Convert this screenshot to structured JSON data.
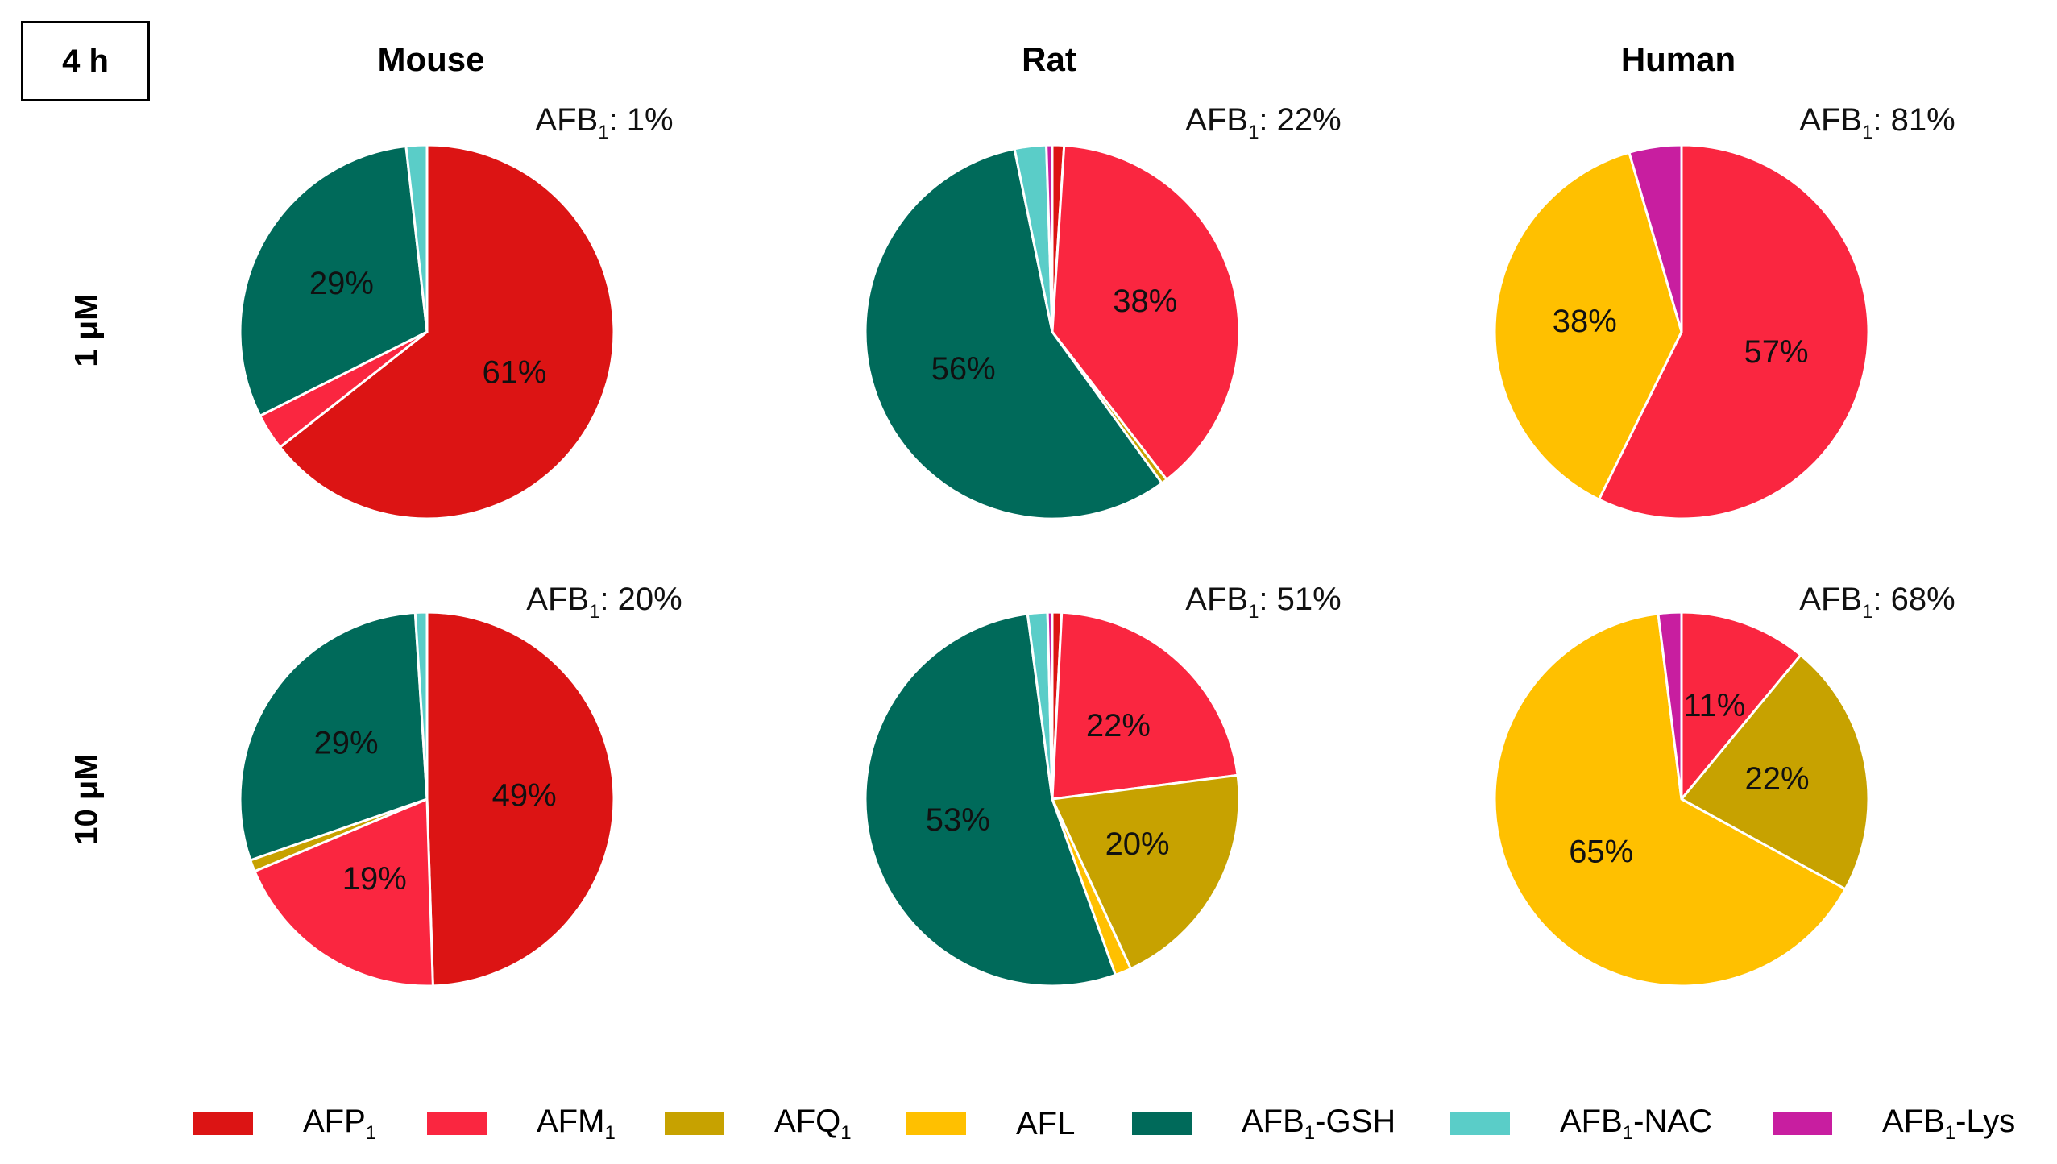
{
  "time_label": "4 h",
  "chart_data": {
    "type": "pie",
    "columns": [
      "Mouse",
      "Rat",
      "Human"
    ],
    "rows": [
      "1 μM",
      "10 μM"
    ],
    "categories": [
      "AFP1",
      "AFM1",
      "AFQ1",
      "AFL",
      "AFB1-GSH",
      "AFB1-NAC",
      "AFB1-Lys"
    ],
    "colors": {
      "AFP1": "#dc1414",
      "AFM1": "#fa2640",
      "AFQ1": "#c7a200",
      "AFL": "#ffc000",
      "AFB1-GSH": "#006a5a",
      "AFB1-NAC": "#5acdc8",
      "AFB1-Lys": "#c81ea0"
    },
    "legend": [
      {
        "name": "AFP1",
        "prefix": "AFP",
        "sub": "1",
        "suffix": ""
      },
      {
        "name": "AFM1",
        "prefix": "AFM",
        "sub": "1",
        "suffix": ""
      },
      {
        "name": "AFQ1",
        "prefix": "AFQ",
        "sub": "1",
        "suffix": ""
      },
      {
        "name": "AFL",
        "prefix": "AFL",
        "sub": "",
        "suffix": ""
      },
      {
        "name": "AFB1-GSH",
        "prefix": "AFB",
        "sub": "1",
        "suffix": "-GSH"
      },
      {
        "name": "AFB1-NAC",
        "prefix": "AFB",
        "sub": "1",
        "suffix": "-NAC"
      },
      {
        "name": "AFB1-Lys",
        "prefix": "AFB",
        "sub": "1",
        "suffix": "-Lys"
      }
    ],
    "pies": [
      {
        "species": "Mouse",
        "concentration": "1 μM",
        "afb1_remaining": "1%",
        "slices": [
          {
            "category": "AFP1",
            "value": 61,
            "label": "61%"
          },
          {
            "category": "AFM1",
            "value": 3,
            "label": ""
          },
          {
            "category": "AFB1-GSH",
            "value": 29,
            "label": "29%"
          },
          {
            "category": "AFB1-NAC",
            "value": 1.7,
            "label": ""
          }
        ]
      },
      {
        "species": "Rat",
        "concentration": "1 μM",
        "afb1_remaining": "22%",
        "slices": [
          {
            "category": "AFP1",
            "value": 1,
            "label": ""
          },
          {
            "category": "AFM1",
            "value": 38,
            "label": "38%"
          },
          {
            "category": "AFQ1",
            "value": 0.5,
            "label": ""
          },
          {
            "category": "AFB1-GSH",
            "value": 56,
            "label": "56%"
          },
          {
            "category": "AFB1-NAC",
            "value": 2.7,
            "label": ""
          },
          {
            "category": "AFB1-Lys",
            "value": 0.5,
            "label": ""
          }
        ]
      },
      {
        "species": "Human",
        "concentration": "1 μM",
        "afb1_remaining": "81%",
        "slices": [
          {
            "category": "AFM1",
            "value": 57,
            "label": "57%"
          },
          {
            "category": "AFL",
            "value": 38,
            "label": "38%"
          },
          {
            "category": "AFB1-Lys",
            "value": 4.5,
            "label": ""
          }
        ]
      },
      {
        "species": "Mouse",
        "concentration": "10 μM",
        "afb1_remaining": "20%",
        "slices": [
          {
            "category": "AFP1",
            "value": 49,
            "label": "49%"
          },
          {
            "category": "AFM1",
            "value": 19,
            "label": "19%"
          },
          {
            "category": "AFQ1",
            "value": 1,
            "label": ""
          },
          {
            "category": "AFB1-GSH",
            "value": 29,
            "label": "29%"
          },
          {
            "category": "AFB1-NAC",
            "value": 1,
            "label": ""
          }
        ]
      },
      {
        "species": "Rat",
        "concentration": "10 μM",
        "afb1_remaining": "51%",
        "slices": [
          {
            "category": "AFP1",
            "value": 0.8,
            "label": ""
          },
          {
            "category": "AFM1",
            "value": 22,
            "label": "22%"
          },
          {
            "category": "AFQ1",
            "value": 20,
            "label": "20%"
          },
          {
            "category": "AFL",
            "value": 1.4,
            "label": ""
          },
          {
            "category": "AFB1-GSH",
            "value": 53,
            "label": "53%"
          },
          {
            "category": "AFB1-NAC",
            "value": 1.7,
            "label": ""
          },
          {
            "category": "AFB1-Lys",
            "value": 0.4,
            "label": ""
          }
        ]
      },
      {
        "species": "Human",
        "concentration": "10 μM",
        "afb1_remaining": "68%",
        "slices": [
          {
            "category": "AFM1",
            "value": 11,
            "label": "11%"
          },
          {
            "category": "AFQ1",
            "value": 22,
            "label": "22%"
          },
          {
            "category": "AFL",
            "value": 65,
            "label": "65%"
          },
          {
            "category": "AFB1-Lys",
            "value": 2,
            "label": ""
          }
        ]
      }
    ]
  }
}
